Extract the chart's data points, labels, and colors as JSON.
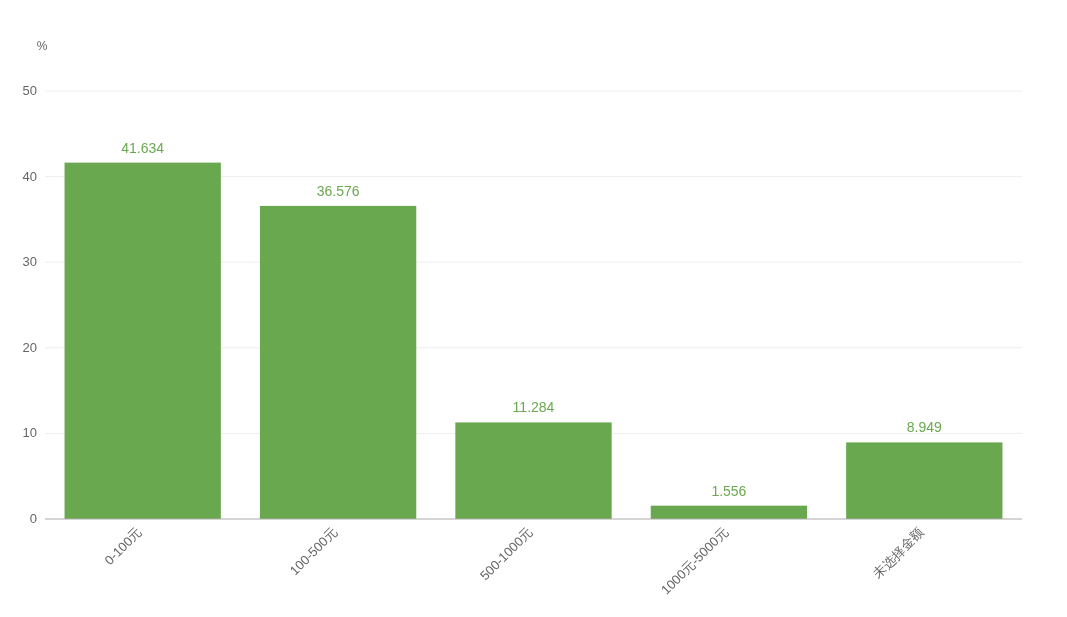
{
  "chart_data": {
    "type": "bar",
    "ylabel": "%",
    "categories": [
      "0-100元",
      "100-500元",
      "500-1000元",
      "1000元-5000元",
      "未选择金额"
    ],
    "values": [
      41.634,
      36.576,
      11.284,
      1.556,
      8.949
    ],
    "color": "#6aa84f",
    "ylim": [
      0,
      50
    ],
    "yticks": [
      0,
      10,
      20,
      30,
      40,
      50
    ],
    "grid": "y",
    "data_labels": true
  }
}
